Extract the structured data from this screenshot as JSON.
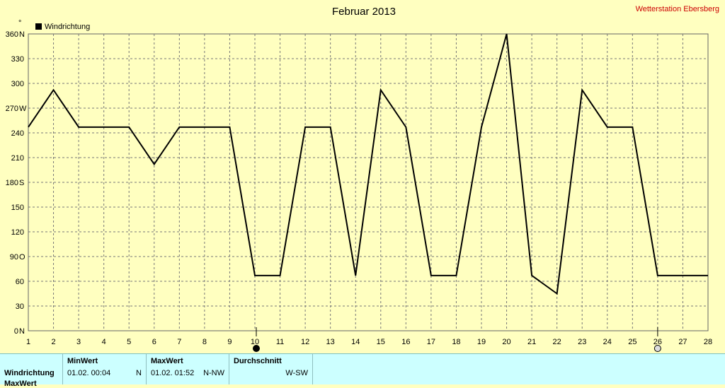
{
  "chart_data": {
    "type": "line",
    "title": "Februar 2013",
    "station": "Wetterstation Ebersberg",
    "y_unit_mark": "°",
    "legend": "Windrichtung",
    "legend_placement": "top-left",
    "grid": true,
    "xlim": [
      1,
      28
    ],
    "ylim": [
      0,
      360
    ],
    "x_ticks": [
      1,
      2,
      3,
      4,
      5,
      6,
      7,
      8,
      9,
      10,
      11,
      12,
      13,
      14,
      15,
      16,
      17,
      18,
      19,
      20,
      21,
      22,
      23,
      24,
      25,
      26,
      27,
      28
    ],
    "y_ticks": [
      {
        "value": 0,
        "label": "0",
        "dir": "N"
      },
      {
        "value": 30,
        "label": "30",
        "dir": ""
      },
      {
        "value": 60,
        "label": "60",
        "dir": ""
      },
      {
        "value": 90,
        "label": "90",
        "dir": "O"
      },
      {
        "value": 120,
        "label": "120",
        "dir": ""
      },
      {
        "value": 150,
        "label": "150",
        "dir": ""
      },
      {
        "value": 180,
        "label": "180",
        "dir": "S"
      },
      {
        "value": 210,
        "label": "210",
        "dir": ""
      },
      {
        "value": 240,
        "label": "240",
        "dir": ""
      },
      {
        "value": 270,
        "label": "270",
        "dir": "W"
      },
      {
        "value": 300,
        "label": "300",
        "dir": ""
      },
      {
        "value": 330,
        "label": "330",
        "dir": ""
      },
      {
        "value": 360,
        "label": "360",
        "dir": "N"
      }
    ],
    "series": [
      {
        "name": "Windrichtung",
        "color": "#000000",
        "x": [
          1,
          2,
          3,
          4,
          5,
          6,
          7,
          8,
          9,
          10,
          11,
          12,
          13,
          14,
          15,
          16,
          17,
          18,
          19,
          20,
          21,
          22,
          23,
          24,
          25,
          26,
          27,
          28
        ],
        "y": [
          247,
          292,
          247,
          247,
          247,
          202,
          247,
          247,
          247,
          67,
          67,
          247,
          247,
          67,
          292,
          247,
          67,
          67,
          247,
          360,
          67,
          45,
          292,
          247,
          247,
          67,
          67,
          67
        ]
      }
    ],
    "markers": [
      {
        "x": 10,
        "style": "filled"
      },
      {
        "x": 26,
        "style": "hollow"
      }
    ]
  },
  "stats": {
    "row_label": "Windrichtung",
    "row_label_2": "MaxWert",
    "min": {
      "header": "MinWert",
      "date": "01.02.",
      "time": "00:04",
      "dir": "N"
    },
    "max": {
      "header": "MaxWert",
      "date": "01.02.",
      "time": "01:52",
      "dir": "N-NW"
    },
    "avg": {
      "header": "Durchschnitt",
      "value": "W-SW"
    }
  }
}
